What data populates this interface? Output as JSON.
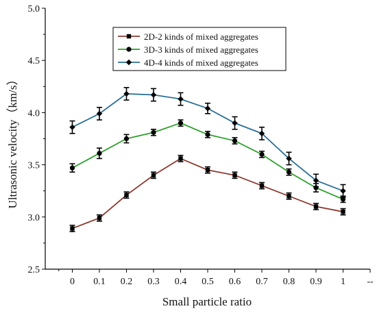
{
  "chart_data": {
    "type": "line",
    "title": "",
    "xlabel": "Small particle ratio",
    "ylabel": "Ultrasonic velocity（km/s）",
    "x": [
      0,
      0.1,
      0.2,
      0.3,
      0.4,
      0.5,
      0.6,
      0.7,
      0.8,
      0.9,
      1
    ],
    "x_tick_labels": [
      "0",
      "0.1",
      "0.2",
      "0.3",
      "0.4",
      "0.5",
      "0.6",
      "0.7",
      "0.8",
      "0.9",
      "1",
      "--"
    ],
    "xlim": [
      -0.1,
      1.1
    ],
    "ylim": [
      2.5,
      5.0
    ],
    "y_ticks": [
      2.5,
      3.0,
      3.5,
      4.0,
      4.5,
      5.0
    ],
    "y_tick_labels": [
      "2.5",
      "3.0",
      "3.5",
      "4.0",
      "4.5",
      "5.0"
    ],
    "grid": false,
    "legend_position": "top-center",
    "series": [
      {
        "name": "2D-2 kinds of mixed aggregates",
        "color": "#8b3a2f",
        "marker": "square",
        "values": [
          2.89,
          2.99,
          3.21,
          3.4,
          3.56,
          3.45,
          3.4,
          3.3,
          3.2,
          3.1,
          3.05
        ],
        "errors": [
          0.03,
          0.03,
          0.03,
          0.03,
          0.03,
          0.03,
          0.03,
          0.03,
          0.03,
          0.03,
          0.03
        ]
      },
      {
        "name": "3D-3 kinds of mixed aggregates",
        "color": "#2ca02c",
        "marker": "circle",
        "values": [
          3.47,
          3.61,
          3.75,
          3.81,
          3.9,
          3.79,
          3.73,
          3.6,
          3.43,
          3.28,
          3.17
        ],
        "errors": [
          0.04,
          0.05,
          0.04,
          0.03,
          0.03,
          0.03,
          0.03,
          0.03,
          0.03,
          0.04,
          0.03
        ]
      },
      {
        "name": "4D-4 kinds of mixed aggregates",
        "color": "#2a6f97",
        "marker": "diamond",
        "values": [
          3.86,
          3.99,
          4.18,
          4.17,
          4.13,
          4.04,
          3.9,
          3.8,
          3.56,
          3.35,
          3.25
        ],
        "errors": [
          0.06,
          0.06,
          0.06,
          0.06,
          0.06,
          0.05,
          0.06,
          0.06,
          0.06,
          0.06,
          0.06
        ]
      }
    ]
  }
}
